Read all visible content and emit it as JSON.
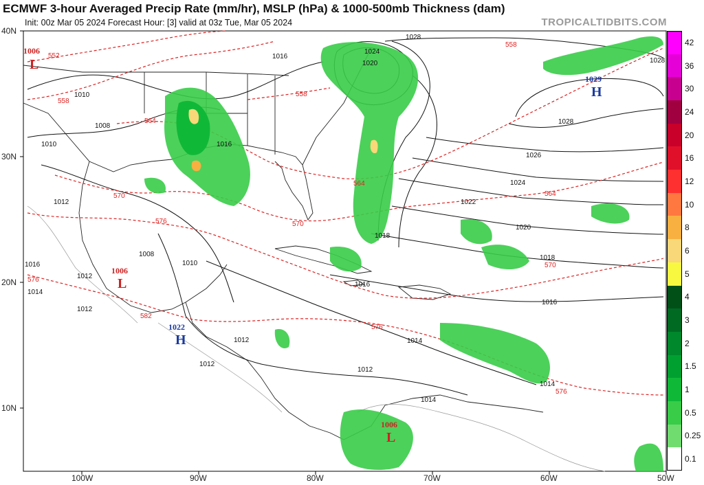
{
  "header": {
    "title": "ECMWF 3-hour Averaged Precip Rate (mm/hr), MSLP (hPa) & 1000-500mb Thickness (dam)",
    "subtitle": "Init: 00z Mar 05 2024   Forecast Hour: [3]   valid at 03z Tue, Mar 05 2024",
    "watermark": "TROPICALTIDBITS.COM"
  },
  "axes": {
    "lat_labels": [
      "40N",
      "30N",
      "20N",
      "10N"
    ],
    "lon_labels": [
      "100W",
      "90W",
      "80W",
      "70W",
      "60W",
      "50W"
    ]
  },
  "pressure_centers": [
    {
      "type": "L",
      "value": "1006",
      "name": "low-center-north"
    },
    {
      "type": "L",
      "value": "1006",
      "name": "low-center-mexico"
    },
    {
      "type": "H",
      "value": "1022",
      "name": "high-center-central-america"
    },
    {
      "type": "L",
      "value": "1006",
      "name": "low-center-colombia"
    },
    {
      "type": "H",
      "value": "1029",
      "name": "high-center-atlantic"
    }
  ],
  "isobar_labels": [
    "1028",
    "1024",
    "1020",
    "1016",
    "1010",
    "1008",
    "1010",
    "1016",
    "1012",
    "1008",
    "1010",
    "1012",
    "1016",
    "1014",
    "1012",
    "1012",
    "1012",
    "1014",
    "1014",
    "1016",
    "1018",
    "1020",
    "1022",
    "1024",
    "1026",
    "1028",
    "1028",
    "1018",
    "1016",
    "1014",
    "1012"
  ],
  "thickness_labels": [
    "552",
    "558",
    "558",
    "564",
    "570",
    "576",
    "570",
    "576",
    "564",
    "558",
    "564",
    "570",
    "576",
    "576",
    "582"
  ],
  "colorbar": {
    "labels": [
      "42",
      "36",
      "30",
      "24",
      "20",
      "16",
      "12",
      "10",
      "8",
      "6",
      "5",
      "4",
      "3",
      "2",
      "1.5",
      "1",
      "0.5",
      "0.25",
      "0.1"
    ],
    "colors": [
      "#ff00ff",
      "#e600d8",
      "#c80090",
      "#a00040",
      "#c8002a",
      "#e0102a",
      "#ff3030",
      "#ff7840",
      "#f8b040",
      "#f8d878",
      "#f8f840",
      "#005018",
      "#006a22",
      "#00882c",
      "#00a030",
      "#10b838",
      "#38cc48",
      "#70dc70",
      "#ffffff"
    ]
  }
}
